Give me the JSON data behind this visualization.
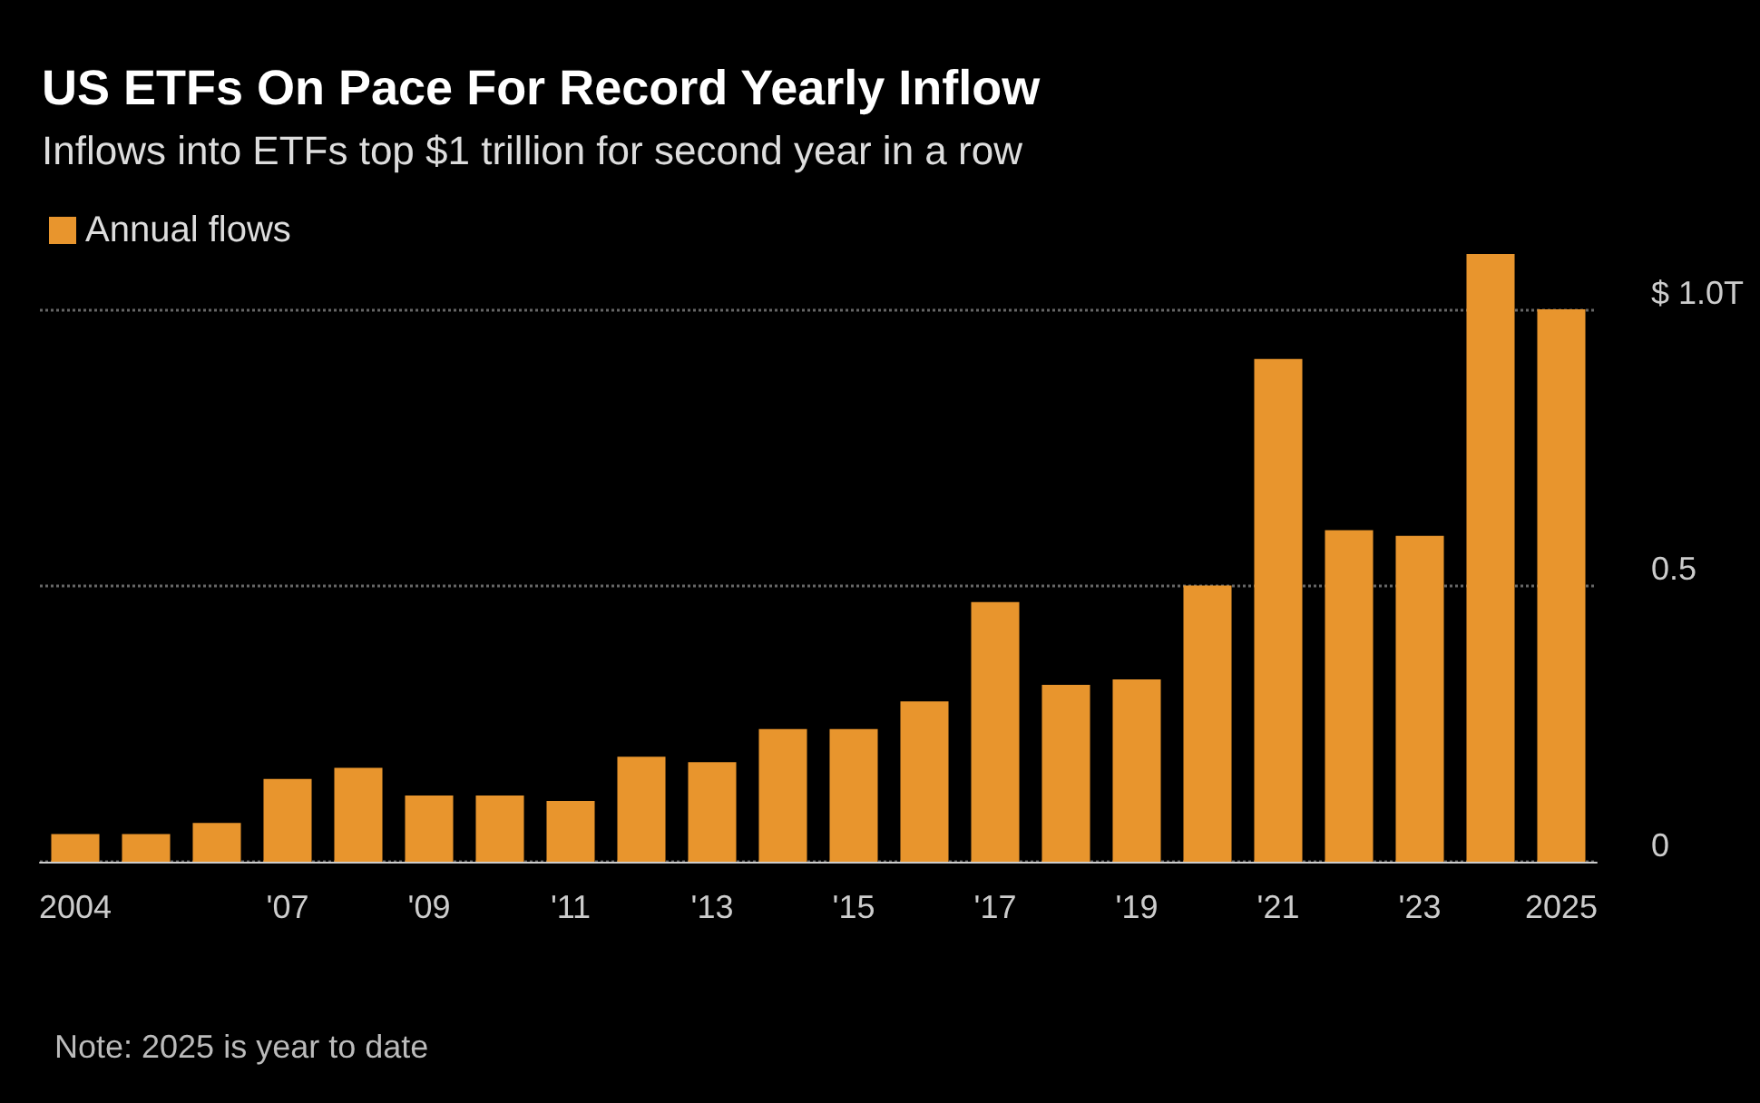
{
  "chart_data": {
    "type": "bar",
    "title": "US ETFs On Pace For Record Yearly Inflow",
    "subtitle": "Inflows into ETFs top $1 trillion for second year in a row",
    "categories": [
      "2004",
      null,
      null,
      "'07",
      null,
      "'09",
      null,
      "'11",
      null,
      "'13",
      null,
      "'15",
      null,
      "'17",
      null,
      "'19",
      null,
      "'21",
      null,
      "'23",
      null,
      "2025"
    ],
    "series": [
      {
        "name": "Annual flows",
        "color": "#e8952d",
        "values": [
          0.05,
          0.05,
          0.07,
          0.15,
          0.17,
          0.12,
          0.12,
          0.11,
          0.19,
          0.18,
          0.24,
          0.24,
          0.29,
          0.47,
          0.32,
          0.33,
          0.5,
          0.91,
          0.6,
          0.59,
          1.1,
          1.0
        ]
      }
    ],
    "ylim": [
      0,
      1.1
    ],
    "yticks": [
      0,
      0.5,
      {
        "value": 1.0,
        "label": "$ 1.0T"
      }
    ],
    "grid": "y",
    "legend": "top left",
    "annotations": [
      "Note: 2025 is year to date"
    ]
  }
}
